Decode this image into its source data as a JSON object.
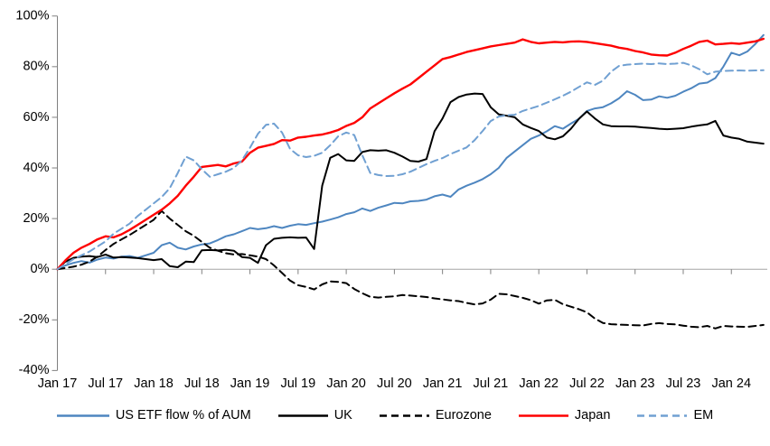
{
  "page": {
    "background": "#ffffff"
  },
  "chart_data": {
    "type": "line",
    "title": "",
    "xlabel": "",
    "ylabel": "",
    "y_unit": "%",
    "ylim": [
      -40,
      100
    ],
    "y_ticks": [
      100,
      80,
      60,
      40,
      20,
      0,
      -20,
      -40
    ],
    "x_tick_labels": [
      "Jan 17",
      "Jul 17",
      "Jan 18",
      "Jul 18",
      "Jan 19",
      "Jul 19",
      "Jan 20",
      "Jul 20",
      "Jan 21",
      "Jul 21",
      "Jan 22",
      "Jul 22",
      "Jan 23",
      "Jul 23",
      "Jan 24"
    ],
    "x_start_month": "Jan 2017",
    "x_end_month": "May 2024",
    "sampling": "monthly",
    "grid": false,
    "zero_line": true,
    "legend_position": "bottom",
    "axis_color": "#808080",
    "zero_line_color": "#a6a6a6",
    "series": [
      {
        "name": "US ETF flow % of AUM",
        "color": "#4e86c0",
        "style": "solid",
        "width": 2,
        "values": [
          0,
          1.5,
          2.5,
          3.2,
          2.6,
          3.8,
          4.6,
          4.2,
          5.0,
          5.2,
          4.5,
          5.5,
          6.5,
          9.5,
          10.5,
          8.5,
          7.8,
          9.0,
          9.8,
          10.2,
          11.5,
          13.0,
          13.8,
          15.0,
          16.3,
          15.8,
          16.2,
          17.0,
          16.3,
          17.2,
          17.8,
          17.5,
          18.2,
          18.8,
          19.6,
          20.5,
          21.8,
          22.5,
          24.0,
          23.0,
          24.3,
          25.2,
          26.2,
          26.0,
          26.8,
          27.0,
          27.5,
          28.8,
          29.5,
          28.6,
          31.5,
          33.0,
          34.2,
          35.6,
          37.5,
          40.0,
          44.0,
          46.5,
          49.0,
          51.5,
          52.8,
          54.5,
          56.5,
          55.5,
          57.5,
          59.4,
          62.5,
          63.5,
          64.0,
          65.5,
          67.5,
          70.3,
          68.9,
          66.8,
          67.0,
          68.3,
          67.7,
          68.5,
          70.1,
          71.5,
          73.3,
          73.7,
          75.5,
          80.0,
          85.5,
          84.5,
          86.0,
          89.0,
          92.5
        ]
      },
      {
        "name": "UK",
        "color": "#000000",
        "style": "solid",
        "width": 2,
        "values": [
          0,
          3.0,
          4.5,
          5.0,
          5.2,
          4.8,
          5.8,
          4.6,
          4.8,
          4.6,
          4.4,
          4.0,
          3.6,
          4.0,
          1.2,
          0.8,
          3.0,
          2.8,
          7.5,
          7.6,
          7.4,
          7.7,
          7.3,
          4.8,
          4.5,
          2.5,
          9.5,
          12.0,
          12.4,
          12.6,
          12.4,
          12.5,
          8.0,
          33.0,
          44.0,
          45.5,
          43.0,
          42.8,
          46.3,
          47.0,
          46.8,
          47.0,
          46.0,
          44.5,
          42.8,
          42.5,
          43.5,
          54.5,
          59.5,
          66.0,
          68.0,
          69.0,
          69.4,
          69.2,
          64.0,
          61.2,
          60.6,
          60.0,
          57.2,
          55.8,
          54.6,
          52.0,
          51.3,
          52.5,
          55.5,
          59.4,
          62.3,
          59.5,
          57.2,
          56.5,
          56.4,
          56.4,
          56.3,
          56.0,
          55.8,
          55.5,
          55.3,
          55.5,
          55.7,
          56.3,
          56.8,
          57.2,
          58.6,
          52.8,
          52.0,
          51.5,
          50.4,
          50.0,
          49.6
        ]
      },
      {
        "name": "Eurozone",
        "color": "#000000",
        "style": "dashed",
        "width": 2,
        "values": [
          0,
          0.5,
          1.0,
          1.8,
          3.0,
          5.0,
          7.6,
          10.0,
          11.8,
          13.5,
          15.5,
          17.5,
          19.5,
          23.0,
          20.0,
          17.5,
          15.0,
          13.2,
          10.8,
          8.5,
          7.3,
          6.3,
          5.8,
          6.0,
          5.5,
          5.0,
          4.0,
          1.5,
          -1.5,
          -4.5,
          -6.3,
          -7.0,
          -8.0,
          -6.0,
          -4.8,
          -5.0,
          -5.5,
          -7.8,
          -9.5,
          -10.9,
          -11.2,
          -10.9,
          -10.7,
          -10.2,
          -10.4,
          -10.7,
          -11.0,
          -11.5,
          -11.9,
          -12.3,
          -12.6,
          -13.3,
          -13.9,
          -13.5,
          -12.0,
          -9.7,
          -9.9,
          -10.6,
          -11.3,
          -12.2,
          -13.6,
          -12.3,
          -12.1,
          -13.8,
          -14.8,
          -15.8,
          -17.0,
          -19.5,
          -21.2,
          -21.7,
          -21.9,
          -22.0,
          -22.1,
          -22.2,
          -21.6,
          -21.3,
          -21.6,
          -21.8,
          -22.3,
          -22.7,
          -22.9,
          -22.4,
          -23.4,
          -22.4,
          -22.6,
          -22.7,
          -22.8,
          -22.4,
          -22.0
        ]
      },
      {
        "name": "Japan",
        "color": "#fe0000",
        "style": "solid",
        "width": 2.4,
        "values": [
          0,
          3.5,
          6.5,
          8.5,
          10.0,
          11.8,
          13.0,
          12.6,
          13.8,
          15.5,
          17.5,
          19.5,
          21.5,
          23.5,
          26.0,
          29.0,
          33.0,
          36.5,
          40.4,
          40.8,
          41.2,
          40.6,
          41.8,
          42.5,
          46.0,
          48.0,
          48.7,
          49.5,
          51.0,
          50.8,
          52.0,
          52.3,
          52.8,
          53.2,
          54.0,
          55.0,
          56.6,
          57.8,
          60.0,
          63.5,
          65.5,
          67.5,
          69.5,
          71.3,
          73.0,
          75.5,
          78.0,
          80.5,
          83.0,
          83.8,
          84.8,
          85.8,
          86.5,
          87.2,
          88.0,
          88.5,
          89.0,
          89.5,
          90.8,
          89.8,
          89.2,
          89.5,
          89.8,
          89.6,
          89.9,
          90.0,
          89.8,
          89.3,
          88.8,
          88.3,
          87.5,
          87.0,
          86.2,
          85.6,
          84.8,
          84.5,
          84.4,
          85.5,
          87.0,
          88.3,
          89.8,
          90.3,
          88.8,
          89.0,
          89.3,
          89.0,
          89.5,
          90.0,
          91.0
        ]
      },
      {
        "name": "EM",
        "color": "#70a0d2",
        "style": "dashed",
        "width": 2,
        "values": [
          0,
          2.0,
          4.0,
          5.5,
          7.0,
          9.0,
          11.0,
          14.0,
          16.0,
          18.0,
          21.0,
          23.5,
          26.0,
          28.5,
          32.0,
          38.0,
          44.5,
          43.0,
          39.5,
          36.5,
          37.5,
          38.5,
          40.0,
          43.0,
          48.0,
          53.5,
          57.0,
          57.5,
          54.0,
          47.5,
          45.0,
          44.3,
          44.8,
          46.0,
          49.0,
          52.5,
          54.0,
          53.0,
          45.0,
          38.0,
          37.2,
          36.8,
          36.9,
          37.5,
          38.5,
          40.0,
          41.5,
          42.8,
          43.9,
          45.5,
          46.8,
          48.1,
          51.0,
          54.6,
          58.5,
          60.3,
          60.8,
          61.0,
          62.5,
          63.5,
          64.5,
          65.8,
          67.1,
          68.5,
          70.1,
          72.0,
          73.8,
          72.8,
          74.5,
          78.0,
          80.3,
          80.8,
          81.0,
          81.2,
          81.0,
          81.3,
          81.0,
          81.2,
          81.5,
          80.5,
          79.0,
          77.0,
          78.0,
          78.3,
          78.4,
          78.5,
          78.4,
          78.5,
          78.6
        ]
      }
    ]
  }
}
